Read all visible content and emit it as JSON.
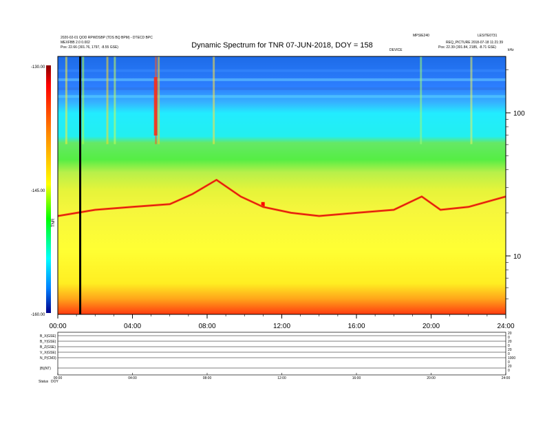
{
  "header": {
    "title": "Dynamic Spectrum for TNR 07-JUN-2018, DOY = 158",
    "left_line1": "2020-02-01 QOD RPWDSBP (TDS BQ BPM) - DTECD BPC",
    "left_line2": "MEXFBB 2.0 0.002",
    "left_line3": "Pos: 22.66 (301.76, 1797, -8.55 GSE)",
    "right_line1": "LESITE0731",
    "right_line2": "REQ_PICTURE 2018-07-18 11:21:39",
    "right_line3": "Pos: 22.39 (301.84, 2185, -8.71 GSE)",
    "center_right_top": "MPSIE240",
    "center_right_mid": "DEVICE"
  },
  "colorbar": {
    "max_label": "-130.00",
    "mid_label": "-145.00",
    "min_label": "-160.00",
    "unit_label": "TNR",
    "colors": [
      "#8b0000",
      "#ff0000",
      "#ff8c00",
      "#ffff00",
      "#00ff00",
      "#00ffff",
      "#0080ff",
      "#0000aa"
    ]
  },
  "chart_data": {
    "type": "heatmap",
    "title": "Dynamic Spectrum for TNR 07-JUN-2018, DOY = 158",
    "x_ticks": [
      "00:00",
      "04:00",
      "08:00",
      "12:00",
      "16:00",
      "20:00",
      "24:00"
    ],
    "x_range_hours": [
      0,
      24
    ],
    "y_scale": "log",
    "y_ticks": [
      {
        "value": 100,
        "label": "100"
      },
      {
        "value": 10,
        "label": "10"
      }
    ],
    "y_top_label": "kHz",
    "color_range": [
      -160,
      -130
    ],
    "marker_hour": 1.2,
    "ridge": {
      "hours": [
        0.0,
        2.0,
        4.0,
        6.0,
        7.2,
        8.5,
        9.8,
        11.0,
        12.5,
        14.0,
        16.0,
        18.0,
        19.5,
        20.5,
        22.0,
        24.0
      ],
      "freq_khz": [
        19,
        21,
        22,
        23,
        27,
        34,
        26,
        22,
        20,
        19,
        20,
        21,
        26,
        21,
        22,
        26
      ]
    }
  },
  "bottom_panel": {
    "row_labels": [
      "B_X(GSE)",
      "B_Y(GSE)",
      "B_Z(GSE)",
      "V_X(GSE)",
      "N_P(CM3)",
      "|B|(NT)"
    ],
    "right_labels": [
      "20",
      "0",
      "20",
      "0",
      "20",
      "0",
      "1000",
      "0",
      "20",
      "0"
    ],
    "x_ticks": [
      "00:00",
      "04:00",
      "08:00",
      "12:00",
      "16:00",
      "20:00",
      "24:00"
    ],
    "status_label": "Status",
    "status_value": "DOY"
  }
}
